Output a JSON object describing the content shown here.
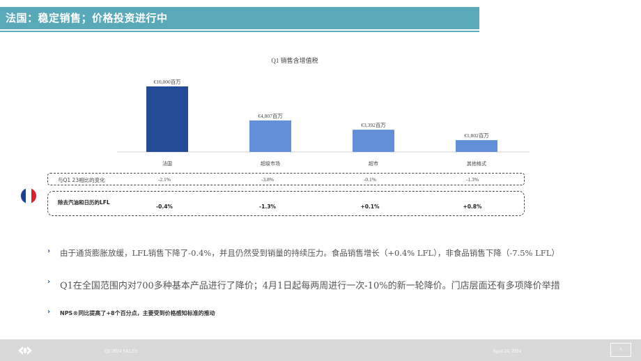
{
  "header": {
    "title": "法国：稳定销售；价格投资进行中"
  },
  "chart_data": {
    "type": "bar",
    "title": "Q1 销售含增值税",
    "categories": [
      "法国",
      "超级市场",
      "超市",
      "其他格式"
    ],
    "values": [
      10000,
      4807,
      3392,
      1802
    ],
    "data_labels": [
      "€10,000百万",
      "€4,807百万",
      "€3,392百万",
      "€1,802百万"
    ],
    "colors": [
      "#234b96",
      "#6190d8",
      "#6190d8",
      "#6190d8"
    ],
    "ylim": [
      0,
      10000
    ],
    "grid": false,
    "xlabel": "",
    "ylabel": ""
  },
  "rows": {
    "change": {
      "label": "与Q1 23相比的变化",
      "values": [
        "-2.1%",
        "-3.8%",
        "-0.1%",
        "-1.3%"
      ]
    },
    "lfl": {
      "label": "除去汽油和日历的LFL",
      "values": [
        "-0.4%",
        "-1.3%",
        "+0.1%",
        "+0.8%"
      ]
    }
  },
  "flag": {
    "icon": "france-flag-icon",
    "colors": [
      "#1f3f95",
      "#ffffff",
      "#d9202b"
    ]
  },
  "bullets": [
    "由于通货膨胀放缓，LFL销售下降了-0.4%，并且仍然受到销量的持续压力。食品销售增长（+0.4% LFL），非食品销售下降（-7.5% LFL）",
    "Q1在全国范围内对700多种基本产品进行了降价；4月1日起每两周进行一次-10%的新一轮降价。门店层面还有多项降价举措",
    "NPS®同比提高了+8个百分点，主要受到价格感知标准的推动"
  ],
  "footer": {
    "logo_icon": "carrefour-logo-icon",
    "left_text": "Q1 2024 SALES",
    "date": "April 24, 2024",
    "page": "9"
  }
}
